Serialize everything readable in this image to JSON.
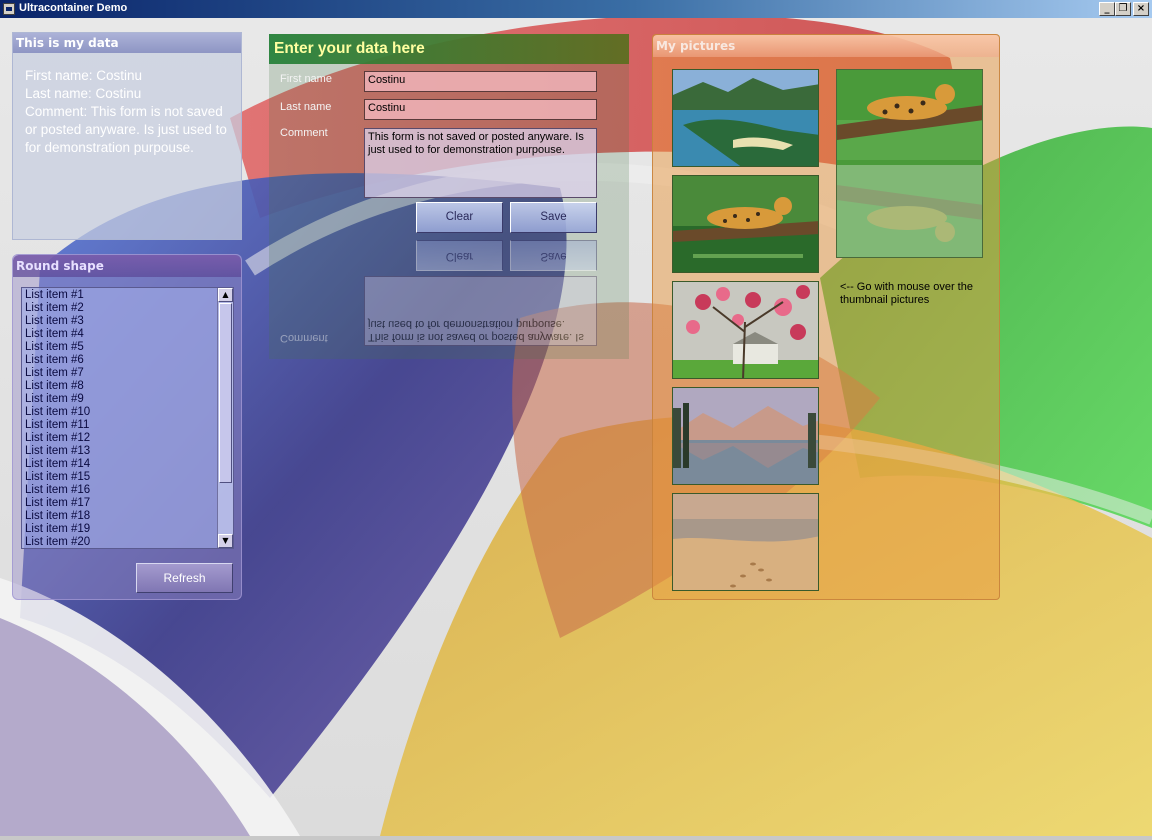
{
  "window": {
    "title": "Ultracontainer Demo",
    "controls": {
      "minimize": "_",
      "maximize": "❐",
      "close": "×"
    }
  },
  "my_data_panel": {
    "title": "This is my data",
    "first_name_line": "First name: Costinu",
    "last_name_line": "Last name: Costinu",
    "comment_line": "Comment: This form is not saved or posted anyware. Is just used to for demonstration purpouse."
  },
  "round_panel": {
    "title": "Round shape",
    "list_items": [
      "List item #1",
      "List item #2",
      "List item #3",
      "List item #4",
      "List item #5",
      "List item #6",
      "List item #7",
      "List item #8",
      "List item #9",
      "List item #10",
      "List item #11",
      "List item #12",
      "List item #13",
      "List item #14",
      "List item #15",
      "List item #16",
      "List item #17",
      "List item #18",
      "List item #19",
      "List item #20"
    ],
    "refresh_label": "Refresh"
  },
  "enter_panel": {
    "title": "Enter your data here",
    "first_name_label": "First name",
    "last_name_label": "Last name",
    "comment_label": "Comment",
    "first_name_value": "Costinu",
    "last_name_value": "Costinu",
    "comment_value": "This form is not saved or posted anyware. Is just used to for demonstration purpouse.",
    "clear_label": "Clear",
    "save_label": "Save"
  },
  "pictures_panel": {
    "title": "My pictures",
    "hint": "<-- Go with mouse over the thumbnail pictures",
    "thumbnails": [
      "island-landscape",
      "leopard-on-branch",
      "magnolia-tree",
      "mountain-lake",
      "beach-footprints"
    ]
  },
  "colors": {
    "title_bar_start": "#0a246a",
    "title_bar_end": "#a6caf0",
    "enter_title_text": "#ffffa0",
    "input_background": "#f0b4b9"
  }
}
